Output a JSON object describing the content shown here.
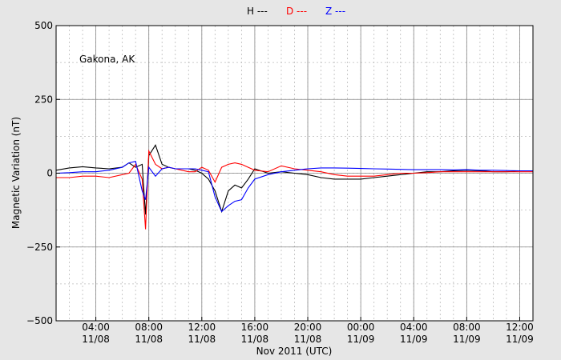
{
  "chart_data": {
    "type": "line",
    "annotation": "Gakona, AK",
    "x_label": "Nov 2011 (UTC)",
    "y_label": "Magnetic Variation (nT)",
    "x": [
      "2011-11-08T01:00",
      "2011-11-08T02:00",
      "2011-11-08T03:00",
      "2011-11-08T04:00",
      "2011-11-08T05:00",
      "2011-11-08T06:00",
      "2011-11-08T06:30",
      "2011-11-08T07:00",
      "2011-11-08T07:30",
      "2011-11-08T07:45",
      "2011-11-08T08:00",
      "2011-11-08T08:30",
      "2011-11-08T09:00",
      "2011-11-08T09:30",
      "2011-11-08T10:00",
      "2011-11-08T10:30",
      "2011-11-08T11:00",
      "2011-11-08T11:30",
      "2011-11-08T12:00",
      "2011-11-08T12:30",
      "2011-11-08T13:00",
      "2011-11-08T13:30",
      "2011-11-08T14:00",
      "2011-11-08T14:30",
      "2011-11-08T15:00",
      "2011-11-08T15:30",
      "2011-11-08T16:00",
      "2011-11-08T17:00",
      "2011-11-08T18:00",
      "2011-11-08T19:00",
      "2011-11-08T20:00",
      "2011-11-08T21:00",
      "2011-11-08T22:00",
      "2011-11-08T23:00",
      "2011-11-09T00:00",
      "2011-11-09T01:00",
      "2011-11-09T02:00",
      "2011-11-09T03:00",
      "2011-11-09T04:00",
      "2011-11-09T05:00",
      "2011-11-09T06:00",
      "2011-11-09T07:00",
      "2011-11-09T08:00",
      "2011-11-09T09:00",
      "2011-11-09T10:00",
      "2011-11-09T11:00",
      "2011-11-09T12:00",
      "2011-11-09T13:00"
    ],
    "series": [
      {
        "name": "H ---",
        "color": "#000000",
        "values": [
          10,
          18,
          22,
          18,
          15,
          20,
          35,
          20,
          30,
          -140,
          60,
          95,
          30,
          20,
          15,
          15,
          15,
          10,
          0,
          -20,
          -60,
          -130,
          -60,
          -40,
          -50,
          -20,
          15,
          0,
          5,
          0,
          -5,
          -15,
          -20,
          -20,
          -20,
          -15,
          -10,
          -5,
          0,
          5,
          5,
          8,
          10,
          8,
          5,
          5,
          8,
          8
        ]
      },
      {
        "name": "D ---",
        "color": "#ff0000",
        "values": [
          -15,
          -15,
          -10,
          -10,
          -15,
          -5,
          0,
          30,
          -20,
          -190,
          75,
          30,
          15,
          20,
          15,
          10,
          5,
          5,
          20,
          10,
          -30,
          20,
          30,
          35,
          30,
          20,
          10,
          5,
          25,
          15,
          10,
          5,
          -5,
          -10,
          -10,
          -10,
          -5,
          0,
          0,
          2,
          5,
          5,
          5,
          5,
          5,
          5,
          5,
          5
        ]
      },
      {
        "name": "Z ---",
        "color": "#0000ff",
        "values": [
          0,
          2,
          5,
          5,
          10,
          20,
          35,
          40,
          -60,
          -90,
          20,
          -10,
          15,
          20,
          15,
          15,
          15,
          15,
          10,
          5,
          -80,
          -130,
          -110,
          -95,
          -90,
          -50,
          -20,
          -5,
          5,
          10,
          15,
          18,
          18,
          17,
          16,
          15,
          14,
          13,
          12,
          12,
          12,
          11,
          12,
          10,
          10,
          9,
          8,
          8
        ]
      }
    ],
    "xlim": [
      "2011-11-08T01:00",
      "2011-11-09T13:00"
    ],
    "xticks": [
      {
        "value": "2011-11-08T04:00",
        "label": "04:00\n11/08"
      },
      {
        "value": "2011-11-08T08:00",
        "label": "08:00\n11/08"
      },
      {
        "value": "2011-11-08T12:00",
        "label": "12:00\n11/08"
      },
      {
        "value": "2011-11-08T16:00",
        "label": "16:00\n11/08"
      },
      {
        "value": "2011-11-08T20:00",
        "label": "20:00\n11/08"
      },
      {
        "value": "2011-11-09T00:00",
        "label": "00:00\n11/09"
      },
      {
        "value": "2011-11-09T04:00",
        "label": "04:00\n11/09"
      },
      {
        "value": "2011-11-09T08:00",
        "label": "08:00\n11/09"
      },
      {
        "value": "2011-11-09T12:00",
        "label": "12:00\n11/09"
      }
    ],
    "ylim": [
      -500,
      500
    ],
    "yticks": [
      {
        "value": -500,
        "label": "−500"
      },
      {
        "value": -250,
        "label": "−250"
      },
      0,
      250,
      500
    ],
    "grid": true,
    "x_minor_step_hours": 1,
    "y_minor_step": 125
  }
}
